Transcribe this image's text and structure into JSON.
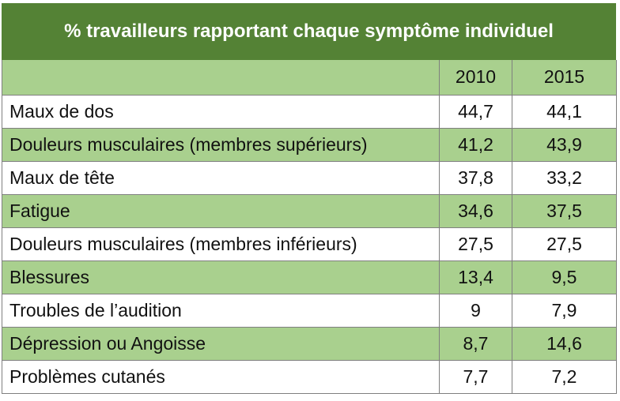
{
  "chart_data": {
    "type": "table",
    "title": "% travailleurs rapportant chaque symptôme individuel",
    "columns": [
      "",
      "2010",
      "2015"
    ],
    "rows": [
      {
        "label": "Maux de dos",
        "values": [
          "44,7",
          "44,1"
        ]
      },
      {
        "label": "Douleurs musculaires (membres supérieurs)",
        "values": [
          "41,2",
          "43,9"
        ]
      },
      {
        "label": "Maux de tête",
        "values": [
          "37,8",
          "33,2"
        ]
      },
      {
        "label": "Fatigue",
        "values": [
          "34,6",
          "37,5"
        ]
      },
      {
        "label": "Douleurs musculaires (membres inférieurs)",
        "values": [
          "27,5",
          "27,5"
        ]
      },
      {
        "label": "Blessures",
        "values": [
          "13,4",
          "9,5"
        ]
      },
      {
        "label": "Troubles de l’audition",
        "values": [
          "9",
          "7,9"
        ]
      },
      {
        "label": "Dépression ou Angoisse",
        "values": [
          "8,7",
          "14,6"
        ]
      },
      {
        "label": "Problèmes cutanés",
        "values": [
          "7,7",
          "7,2"
        ]
      }
    ]
  },
  "colors": {
    "title_bg": "#548235",
    "band_green": "#a9d08e",
    "band_white": "#ffffff"
  }
}
